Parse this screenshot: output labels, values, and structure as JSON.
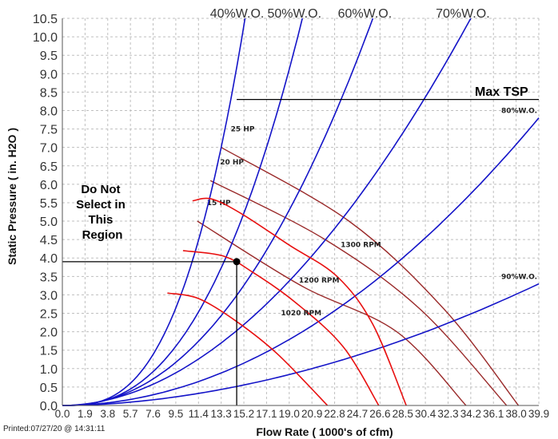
{
  "chart_data": {
    "type": "line",
    "xlabel": "Flow Rate ( 1000's of cfm)",
    "ylabel": "Static Pressure ( in. H2O )",
    "xlim": [
      0,
      39.9
    ],
    "ylim": [
      0,
      10.5
    ],
    "x_ticks": [
      "0.0",
      "1.9",
      "3.8",
      "5.7",
      "7.6",
      "9.5",
      "11.4",
      "13.3",
      "15.2",
      "17.1",
      "19.0",
      "20.9",
      "22.8",
      "24.7",
      "26.6",
      "28.5",
      "30.4",
      "32.3",
      "34.2",
      "36.1",
      "38.0",
      "39.9"
    ],
    "y_ticks": [
      "0.0",
      "0.5",
      "1.0",
      "1.5",
      "2.0",
      "2.5",
      "3.0",
      "3.5",
      "4.0",
      "4.5",
      "5.0",
      "5.5",
      "6.0",
      "6.5",
      "7.0",
      "7.5",
      "8.0",
      "8.5",
      "9.0",
      "9.5",
      "10.0",
      "10.5"
    ],
    "grid": true,
    "system_curves": [
      {
        "label": "40%W.O.",
        "points": [
          [
            0,
            0
          ],
          [
            13.3,
            7.0
          ],
          [
            15.3,
            10.5
          ]
        ]
      },
      {
        "label": "50%W.O.",
        "points": [
          [
            0,
            0
          ],
          [
            15.3,
            5.3
          ],
          [
            20.1,
            10.5
          ]
        ]
      },
      {
        "label": "60%W.O.",
        "points": [
          [
            0,
            0
          ],
          [
            19.0,
            5.3
          ],
          [
            26.0,
            10.5
          ]
        ]
      },
      {
        "label": "70%W.O.",
        "points": [
          [
            0,
            0
          ],
          [
            24.0,
            5.3
          ],
          [
            34.2,
            10.5
          ]
        ]
      },
      {
        "label": "80%W.O.",
        "points": [
          [
            0,
            0
          ],
          [
            28.5,
            4.0
          ],
          [
            39.9,
            7.8
          ]
        ]
      },
      {
        "label": "90%W.O.",
        "points": [
          [
            0,
            0
          ],
          [
            20.9,
            1.0
          ],
          [
            39.9,
            3.3
          ]
        ]
      }
    ],
    "rpm_curves": [
      {
        "label": "1020 RPM",
        "points": [
          [
            8.8,
            3.05
          ],
          [
            11.4,
            2.9
          ],
          [
            14.5,
            2.3
          ],
          [
            18.0,
            1.4
          ],
          [
            22.2,
            0.0
          ]
        ]
      },
      {
        "label": "1200 RPM",
        "points": [
          [
            10.1,
            4.2
          ],
          [
            13.5,
            4.05
          ],
          [
            16.0,
            3.6
          ],
          [
            19.5,
            2.8
          ],
          [
            23.5,
            1.6
          ],
          [
            26.5,
            0.0
          ]
        ]
      },
      {
        "label": "1300 RPM",
        "points": [
          [
            10.9,
            5.55
          ],
          [
            12.5,
            5.6
          ],
          [
            15.0,
            5.2
          ],
          [
            19.0,
            4.35
          ],
          [
            23.0,
            3.5
          ],
          [
            26.0,
            2.2
          ],
          [
            28.8,
            0.0
          ]
        ]
      }
    ],
    "hp_curves": [
      {
        "label": "15 HP",
        "points": [
          [
            11.3,
            5.0
          ],
          [
            20.0,
            3.25
          ],
          [
            28.0,
            2.0
          ],
          [
            33.8,
            0.0
          ]
        ]
      },
      {
        "label": "20 HP",
        "points": [
          [
            12.4,
            6.1
          ],
          [
            22.0,
            4.5
          ],
          [
            30.0,
            2.6
          ],
          [
            37.2,
            0.0
          ]
        ]
      },
      {
        "label": "25 HP",
        "points": [
          [
            13.3,
            7.0
          ],
          [
            24.0,
            5.0
          ],
          [
            32.0,
            2.6
          ],
          [
            38.2,
            0.0
          ]
        ]
      }
    ],
    "max_tsp": {
      "label": "Max TSP",
      "y": 8.3,
      "x_start": 14.6,
      "x_end": 39.9
    },
    "operating_point": {
      "x": 14.6,
      "y": 3.9
    },
    "region_label": [
      "Do Not",
      "Select in",
      "This",
      "Region"
    ],
    "printed": "Printed:07/27/20 @ 14:31:11",
    "colors": {
      "system": "#1414c8",
      "rpm": "#e81010",
      "hp": "#9a2a2a",
      "grid": "#bfbfbf",
      "tsp": "#000000"
    }
  }
}
